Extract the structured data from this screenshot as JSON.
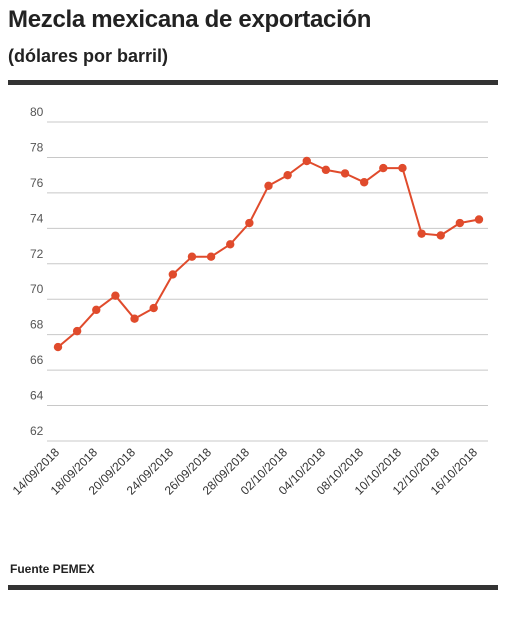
{
  "title": "Mezcla mexicana de exportación",
  "subtitle": "(dólares por barril)",
  "source": "Fuente PEMEX",
  "colors": {
    "line": "#e04b2c",
    "grid": "#c8c8c8",
    "rule": "#333333"
  },
  "chart_data": {
    "type": "line",
    "title": "Mezcla mexicana de exportación",
    "ylabel": "",
    "xlabel": "",
    "ylim": [
      62,
      80
    ],
    "yticks": [
      62,
      64,
      66,
      68,
      70,
      72,
      74,
      76,
      78,
      80
    ],
    "grid": true,
    "xtick_labels": [
      "14/09/2018",
      "18/09/2018",
      "20/09/2018",
      "24/09/2018",
      "26/09/2018",
      "28/09/2018",
      "02/10/2018",
      "04/10/2018",
      "08/10/2018",
      "10/10/2018",
      "12/10/2018",
      "16/10/2018"
    ],
    "series": [
      {
        "values": [
          67.3,
          68.2,
          69.4,
          70.2,
          68.9,
          69.5,
          71.4,
          72.4,
          72.4,
          73.1,
          74.3,
          76.4,
          77.0,
          77.8,
          77.3,
          77.1,
          76.6,
          77.4,
          77.4,
          73.7,
          73.6,
          74.3,
          74.5
        ]
      }
    ]
  }
}
